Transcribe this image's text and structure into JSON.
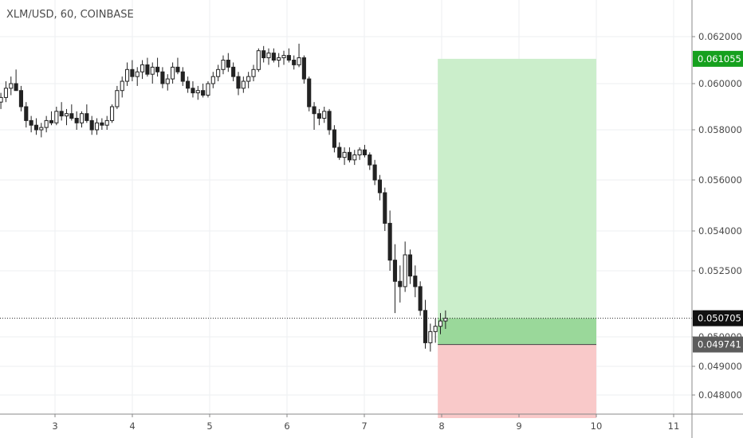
{
  "header": {
    "title": "XLM/USD, 60, COINBASE"
  },
  "chart_data": {
    "type": "candlestick",
    "title": "XLM/USD, 60, COINBASE",
    "y_ticks": [
      "0.062000",
      "0.060000",
      "0.058000",
      "0.056000",
      "0.054000",
      "0.052500",
      "0.050000",
      "0.049000",
      "0.048000"
    ],
    "x_ticks": [
      "3",
      "4",
      "5",
      "6",
      "7",
      "8",
      "9",
      "10",
      "11"
    ],
    "ylim": [
      0.0475,
      0.0635
    ],
    "grid": true,
    "price_tags": {
      "target": "0.061055",
      "current": "0.050705",
      "entry": "0.049741"
    },
    "position": {
      "entry": 0.049741,
      "target": 0.061055,
      "stop": 0.0472,
      "start_day": 7.95,
      "end_day": 10.0
    },
    "ohlc_start_day": 2.3,
    "ohlc_end_day": 8.05,
    "ohlc": [
      [
        0.0592,
        0.0596,
        0.0589,
        0.0594
      ],
      [
        0.0594,
        0.0601,
        0.0592,
        0.0598
      ],
      [
        0.0598,
        0.0603,
        0.0595,
        0.06
      ],
      [
        0.06,
        0.0606,
        0.0597,
        0.0597
      ],
      [
        0.0597,
        0.0599,
        0.0588,
        0.059
      ],
      [
        0.059,
        0.0592,
        0.0581,
        0.0584
      ],
      [
        0.0584,
        0.0586,
        0.0579,
        0.0582
      ],
      [
        0.0582,
        0.0585,
        0.0578,
        0.058
      ],
      [
        0.058,
        0.0583,
        0.0577,
        0.0581
      ],
      [
        0.0581,
        0.0586,
        0.0579,
        0.0584
      ],
      [
        0.0584,
        0.0588,
        0.0582,
        0.0583
      ],
      [
        0.0583,
        0.059,
        0.0582,
        0.0588
      ],
      [
        0.0588,
        0.0592,
        0.0584,
        0.0586
      ],
      [
        0.0586,
        0.0589,
        0.0582,
        0.0587
      ],
      [
        0.0587,
        0.0591,
        0.0584,
        0.0585
      ],
      [
        0.0585,
        0.0588,
        0.058,
        0.0583
      ],
      [
        0.0583,
        0.0588,
        0.0581,
        0.0587
      ],
      [
        0.0587,
        0.0591,
        0.0583,
        0.0584
      ],
      [
        0.0584,
        0.0586,
        0.0578,
        0.058
      ],
      [
        0.058,
        0.0585,
        0.0578,
        0.0583
      ],
      [
        0.0583,
        0.0585,
        0.058,
        0.0582
      ],
      [
        0.0582,
        0.0586,
        0.058,
        0.0584
      ],
      [
        0.0584,
        0.0591,
        0.0583,
        0.059
      ],
      [
        0.059,
        0.0599,
        0.0589,
        0.0597
      ],
      [
        0.0597,
        0.0603,
        0.0594,
        0.0601
      ],
      [
        0.0601,
        0.0609,
        0.0599,
        0.0606
      ],
      [
        0.0606,
        0.061,
        0.0601,
        0.0603
      ],
      [
        0.0603,
        0.0607,
        0.0599,
        0.0605
      ],
      [
        0.0605,
        0.061,
        0.0602,
        0.0608
      ],
      [
        0.0608,
        0.0611,
        0.0603,
        0.0604
      ],
      [
        0.0604,
        0.0609,
        0.06,
        0.0607
      ],
      [
        0.0607,
        0.0611,
        0.0603,
        0.0605
      ],
      [
        0.0605,
        0.0607,
        0.0598,
        0.06
      ],
      [
        0.06,
        0.0604,
        0.0597,
        0.0602
      ],
      [
        0.0602,
        0.0609,
        0.06,
        0.0607
      ],
      [
        0.0607,
        0.0611,
        0.0604,
        0.0605
      ],
      [
        0.0605,
        0.0607,
        0.0599,
        0.0601
      ],
      [
        0.0601,
        0.0603,
        0.0596,
        0.0598
      ],
      [
        0.0598,
        0.0601,
        0.0594,
        0.0596
      ],
      [
        0.0596,
        0.0599,
        0.0593,
        0.0597
      ],
      [
        0.0597,
        0.06,
        0.0594,
        0.0595
      ],
      [
        0.0595,
        0.0601,
        0.0594,
        0.06
      ],
      [
        0.06,
        0.0605,
        0.0598,
        0.0603
      ],
      [
        0.0603,
        0.0608,
        0.0601,
        0.0606
      ],
      [
        0.0606,
        0.0612,
        0.0604,
        0.061
      ],
      [
        0.061,
        0.0613,
        0.0605,
        0.0607
      ],
      [
        0.0607,
        0.0609,
        0.0601,
        0.0603
      ],
      [
        0.0603,
        0.0605,
        0.0595,
        0.0598
      ],
      [
        0.0598,
        0.0603,
        0.0596,
        0.0601
      ],
      [
        0.0601,
        0.0605,
        0.0598,
        0.0603
      ],
      [
        0.0603,
        0.0608,
        0.0601,
        0.0606
      ],
      [
        0.0606,
        0.0615,
        0.0605,
        0.0614
      ],
      [
        0.0614,
        0.0616,
        0.0609,
        0.0611
      ],
      [
        0.0611,
        0.0615,
        0.0608,
        0.0613
      ],
      [
        0.0613,
        0.0615,
        0.0609,
        0.061
      ],
      [
        0.061,
        0.0613,
        0.0607,
        0.0611
      ],
      [
        0.0611,
        0.0614,
        0.0608,
        0.0612
      ],
      [
        0.0612,
        0.0615,
        0.0609,
        0.061
      ],
      [
        0.061,
        0.0612,
        0.0606,
        0.0608
      ],
      [
        0.0608,
        0.0617,
        0.0607,
        0.0611
      ],
      [
        0.0611,
        0.0612,
        0.06,
        0.0602
      ],
      [
        0.0602,
        0.0603,
        0.0588,
        0.059
      ],
      [
        0.059,
        0.0592,
        0.058,
        0.0587
      ],
      [
        0.0587,
        0.0589,
        0.0582,
        0.0585
      ],
      [
        0.0585,
        0.059,
        0.0583,
        0.0588
      ],
      [
        0.0588,
        0.0589,
        0.0578,
        0.058
      ],
      [
        0.058,
        0.0582,
        0.0571,
        0.0573
      ],
      [
        0.0573,
        0.0575,
        0.0568,
        0.0569
      ],
      [
        0.0569,
        0.0573,
        0.0566,
        0.0571
      ],
      [
        0.0571,
        0.0573,
        0.0567,
        0.0568
      ],
      [
        0.0568,
        0.0572,
        0.0566,
        0.057
      ],
      [
        0.057,
        0.0573,
        0.0568,
        0.0572
      ],
      [
        0.0572,
        0.0574,
        0.0569,
        0.057
      ],
      [
        0.057,
        0.0571,
        0.0564,
        0.0566
      ],
      [
        0.0566,
        0.0568,
        0.0558,
        0.056
      ],
      [
        0.056,
        0.0562,
        0.0552,
        0.0555
      ],
      [
        0.0555,
        0.0557,
        0.054,
        0.0543
      ],
      [
        0.0543,
        0.0548,
        0.0525,
        0.0529
      ],
      [
        0.0529,
        0.0535,
        0.0509,
        0.0521
      ],
      [
        0.0521,
        0.0527,
        0.0513,
        0.0519
      ],
      [
        0.0519,
        0.0536,
        0.0517,
        0.0531
      ],
      [
        0.0531,
        0.0533,
        0.052,
        0.0523
      ],
      [
        0.0523,
        0.0527,
        0.0515,
        0.0519
      ],
      [
        0.0519,
        0.0521,
        0.0508,
        0.051
      ],
      [
        0.051,
        0.0514,
        0.0496,
        0.0498
      ],
      [
        0.0498,
        0.0505,
        0.0495,
        0.0502
      ],
      [
        0.0502,
        0.0507,
        0.0498,
        0.0504
      ],
      [
        0.0504,
        0.0509,
        0.0501,
        0.0506
      ],
      [
        0.0506,
        0.051,
        0.0503,
        0.0507
      ]
    ]
  }
}
